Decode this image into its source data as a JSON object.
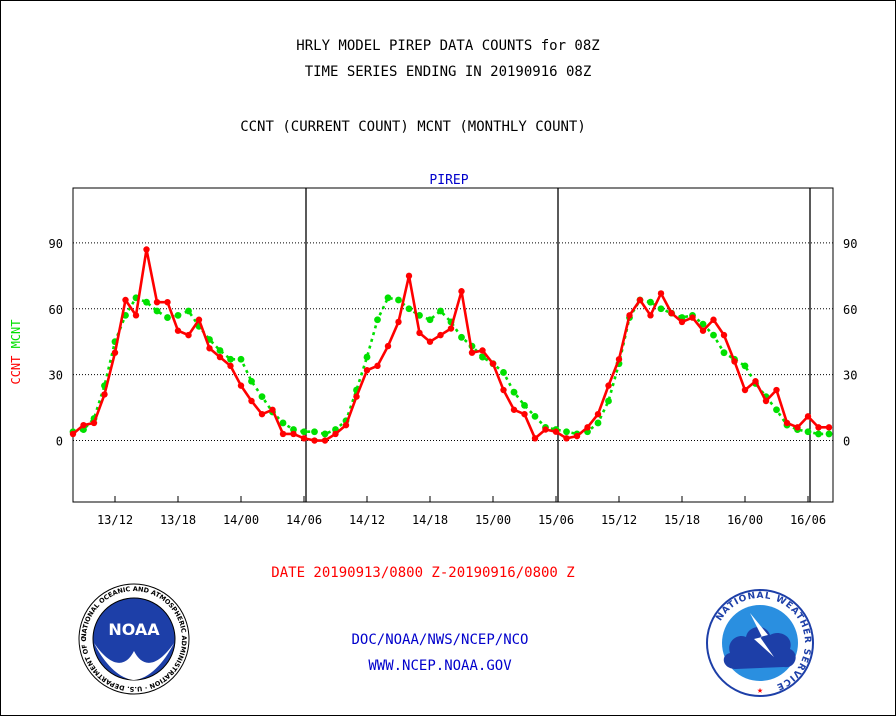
{
  "header": {
    "title_line1": "HRLY MODEL PIREP DATA COUNTS for 08Z",
    "title_line2": "TIME SERIES ENDING IN 20190916 08Z",
    "title_line3": "CCNT (CURRENT COUNT) MCNT (MONTHLY COUNT)"
  },
  "footer": {
    "date_range": "DATE 20190913/0800 Z-20190916/0800 Z",
    "doc": "DOC/NOAA/NWS/NCEP/NCO",
    "web": "WWW.NCEP.NOAA.GOV"
  },
  "logos": {
    "noaa": {
      "text": "NOAA",
      "ring_text": "NATIONAL OCEANIC AND ATMOSPHERIC ADMINISTRATION · U.S. DEPARTMENT OF COMMERCE"
    },
    "nws": {
      "ring_text": "NATIONAL WEATHER SERVICE"
    }
  },
  "chart_data": {
    "type": "line",
    "title": "PIREP",
    "ylabel_left": "CCNT",
    "ylabel_right": "MCNT",
    "ylim": [
      -28,
      115
    ],
    "yticks": [
      0,
      30,
      60,
      90
    ],
    "xlim": [
      0,
      72
    ],
    "x_ticks": [
      {
        "x": 4,
        "label": "13/12"
      },
      {
        "x": 10,
        "label": "13/18"
      },
      {
        "x": 16,
        "label": "14/00"
      },
      {
        "x": 22,
        "label": "14/06"
      },
      {
        "x": 28,
        "label": "14/12"
      },
      {
        "x": 34,
        "label": "14/18"
      },
      {
        "x": 40,
        "label": "15/00"
      },
      {
        "x": 46,
        "label": "15/06"
      },
      {
        "x": 52,
        "label": "15/12"
      },
      {
        "x": 58,
        "label": "15/18"
      },
      {
        "x": 64,
        "label": "16/00"
      },
      {
        "x": 70,
        "label": "16/06"
      }
    ],
    "day_lines": [
      22,
      46,
      70
    ],
    "grid": "horizontal dotted",
    "series": [
      {
        "name": "CCNT",
        "color": "#ff0000",
        "style": "solid",
        "values": [
          3,
          7,
          8,
          21,
          40,
          64,
          57,
          87,
          63,
          63,
          50,
          48,
          55,
          42,
          38,
          34,
          25,
          18,
          12,
          14,
          3,
          3,
          1,
          0,
          0,
          3,
          7,
          20,
          32,
          34,
          43,
          54,
          75,
          49,
          45,
          48,
          51,
          68,
          40,
          41,
          35,
          23,
          14,
          12,
          1,
          5,
          4,
          1,
          2,
          6,
          12,
          25,
          37,
          57,
          64,
          57,
          67,
          58,
          54,
          56,
          50,
          55,
          48,
          36,
          23,
          27,
          18,
          23,
          8,
          6,
          11,
          6,
          6
        ]
      },
      {
        "name": "MCNT",
        "color": "#00e000",
        "style": "dotted",
        "values": [
          4,
          5,
          10,
          25,
          45,
          57,
          65,
          63,
          59,
          56,
          57,
          59,
          52,
          46,
          41,
          37,
          37,
          27,
          20,
          13,
          8,
          5,
          4,
          4,
          3,
          5,
          9,
          23,
          38,
          55,
          65,
          64,
          60,
          57,
          55,
          59,
          54,
          47,
          43,
          38,
          35,
          31,
          22,
          16,
          11,
          6,
          5,
          4,
          3,
          4,
          8,
          18,
          35,
          56,
          64,
          63,
          60,
          58,
          56,
          57,
          53,
          48,
          40,
          37,
          34,
          26,
          20,
          14,
          7,
          5,
          4,
          3,
          3
        ]
      }
    ]
  }
}
